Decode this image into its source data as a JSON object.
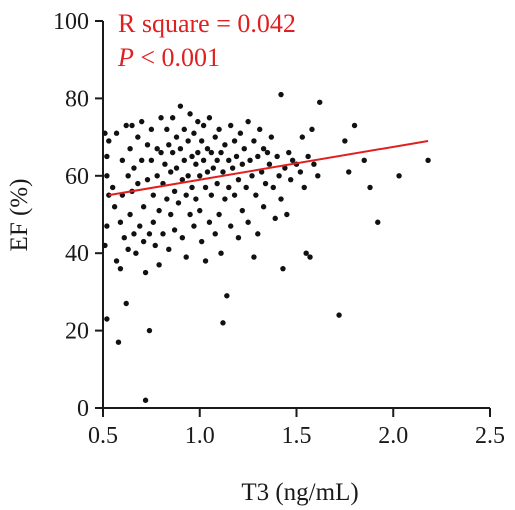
{
  "chart_data": {
    "type": "scatter",
    "xlabel": "T3 (ng/mL)",
    "ylabel": "EF (%)",
    "xlim": [
      0.5,
      2.5
    ],
    "ylim": [
      0,
      100
    ],
    "x_ticks": [
      "0.5",
      "1.0",
      "1.5",
      "2.0",
      "2.5"
    ],
    "y_ticks": [
      "0",
      "20",
      "40",
      "60",
      "80",
      "100"
    ],
    "grid": false,
    "annotations": {
      "r_square": "R square = 0.042",
      "p_label": "P",
      "p_rest": " < 0.001"
    },
    "colors": {
      "points": "#111111",
      "fit_line": "#e02020",
      "annotation": "#e02020",
      "axis": "#1a1a1a"
    },
    "fit_line": {
      "x": [
        0.53,
        2.18
      ],
      "y": [
        55,
        69
      ]
    },
    "points": [
      [
        0.51,
        71
      ],
      [
        0.52,
        65
      ],
      [
        0.52,
        60
      ],
      [
        0.53,
        69
      ],
      [
        0.53,
        55
      ],
      [
        0.52,
        47
      ],
      [
        0.51,
        42
      ],
      [
        0.52,
        23
      ],
      [
        0.55,
        57
      ],
      [
        0.56,
        52
      ],
      [
        0.57,
        71
      ],
      [
        0.57,
        38
      ],
      [
        0.58,
        17
      ],
      [
        0.59,
        48
      ],
      [
        0.59,
        36
      ],
      [
        0.6,
        64
      ],
      [
        0.6,
        55
      ],
      [
        0.61,
        44
      ],
      [
        0.62,
        73
      ],
      [
        0.62,
        27
      ],
      [
        0.63,
        60
      ],
      [
        0.63,
        41
      ],
      [
        0.64,
        67
      ],
      [
        0.64,
        50
      ],
      [
        0.65,
        73
      ],
      [
        0.65,
        56
      ],
      [
        0.66,
        62
      ],
      [
        0.66,
        45
      ],
      [
        0.67,
        40
      ],
      [
        0.68,
        70
      ],
      [
        0.68,
        58
      ],
      [
        0.69,
        47
      ],
      [
        0.7,
        74
      ],
      [
        0.7,
        64
      ],
      [
        0.71,
        52
      ],
      [
        0.71,
        43
      ],
      [
        0.72,
        35
      ],
      [
        0.72,
        2
      ],
      [
        0.73,
        68
      ],
      [
        0.73,
        59
      ],
      [
        0.74,
        45
      ],
      [
        0.74,
        20
      ],
      [
        0.75,
        72
      ],
      [
        0.75,
        64
      ],
      [
        0.76,
        55
      ],
      [
        0.76,
        48
      ],
      [
        0.77,
        42
      ],
      [
        0.78,
        67
      ],
      [
        0.78,
        60
      ],
      [
        0.79,
        51
      ],
      [
        0.79,
        37
      ],
      [
        0.8,
        75
      ],
      [
        0.8,
        66
      ],
      [
        0.81,
        58
      ],
      [
        0.81,
        45
      ],
      [
        0.82,
        63
      ],
      [
        0.83,
        72
      ],
      [
        0.83,
        54
      ],
      [
        0.84,
        68
      ],
      [
        0.84,
        41
      ],
      [
        0.85,
        61
      ],
      [
        0.85,
        50
      ],
      [
        0.86,
        75
      ],
      [
        0.86,
        66
      ],
      [
        0.87,
        56
      ],
      [
        0.87,
        46
      ],
      [
        0.88,
        70
      ],
      [
        0.88,
        62
      ],
      [
        0.89,
        53
      ],
      [
        0.9,
        78
      ],
      [
        0.9,
        67
      ],
      [
        0.91,
        59
      ],
      [
        0.91,
        44
      ],
      [
        0.92,
        72
      ],
      [
        0.92,
        64
      ],
      [
        0.93,
        55
      ],
      [
        0.93,
        39
      ],
      [
        0.94,
        69
      ],
      [
        0.94,
        60
      ],
      [
        0.95,
        50
      ],
      [
        0.95,
        76
      ],
      [
        0.96,
        65
      ],
      [
        0.96,
        57
      ],
      [
        0.97,
        71
      ],
      [
        0.97,
        47
      ],
      [
        0.98,
        63
      ],
      [
        0.98,
        54
      ],
      [
        0.99,
        74
      ],
      [
        0.99,
        66
      ],
      [
        1.0,
        60
      ],
      [
        1.0,
        51
      ],
      [
        1.01,
        69
      ],
      [
        1.01,
        43
      ],
      [
        1.02,
        73
      ],
      [
        1.02,
        64
      ],
      [
        1.03,
        57
      ],
      [
        1.03,
        38
      ],
      [
        1.04,
        67
      ],
      [
        1.04,
        61
      ],
      [
        1.05,
        75
      ],
      [
        1.05,
        48
      ],
      [
        1.06,
        66
      ],
      [
        1.06,
        55
      ],
      [
        1.07,
        62
      ],
      [
        1.08,
        70
      ],
      [
        1.08,
        45
      ],
      [
        1.09,
        64
      ],
      [
        1.09,
        58
      ],
      [
        1.1,
        72
      ],
      [
        1.1,
        50
      ],
      [
        1.11,
        66
      ],
      [
        1.11,
        40
      ],
      [
        1.12,
        61
      ],
      [
        1.12,
        22
      ],
      [
        1.13,
        68
      ],
      [
        1.13,
        54
      ],
      [
        1.14,
        29
      ],
      [
        1.15,
        64
      ],
      [
        1.15,
        57
      ],
      [
        1.16,
        73
      ],
      [
        1.16,
        47
      ],
      [
        1.17,
        62
      ],
      [
        1.18,
        69
      ],
      [
        1.18,
        55
      ],
      [
        1.19,
        65
      ],
      [
        1.2,
        59
      ],
      [
        1.2,
        44
      ],
      [
        1.21,
        71
      ],
      [
        1.22,
        63
      ],
      [
        1.22,
        51
      ],
      [
        1.23,
        67
      ],
      [
        1.24,
        57
      ],
      [
        1.25,
        74
      ],
      [
        1.25,
        48
      ],
      [
        1.26,
        64
      ],
      [
        1.27,
        60
      ],
      [
        1.28,
        69
      ],
      [
        1.28,
        39
      ],
      [
        1.29,
        55
      ],
      [
        1.3,
        65
      ],
      [
        1.3,
        45
      ],
      [
        1.31,
        72
      ],
      [
        1.32,
        61
      ],
      [
        1.33,
        67
      ],
      [
        1.33,
        52
      ],
      [
        1.34,
        58
      ],
      [
        1.35,
        66
      ],
      [
        1.36,
        63
      ],
      [
        1.37,
        70
      ],
      [
        1.38,
        57
      ],
      [
        1.39,
        49
      ],
      [
        1.4,
        65
      ],
      [
        1.41,
        60
      ],
      [
        1.42,
        81
      ],
      [
        1.42,
        54
      ],
      [
        1.43,
        36
      ],
      [
        1.44,
        62
      ],
      [
        1.45,
        50
      ],
      [
        1.46,
        66
      ],
      [
        1.47,
        59
      ],
      [
        1.48,
        64
      ],
      [
        1.5,
        63
      ],
      [
        1.52,
        61
      ],
      [
        1.53,
        70
      ],
      [
        1.54,
        57
      ],
      [
        1.55,
        40
      ],
      [
        1.56,
        65
      ],
      [
        1.57,
        39
      ],
      [
        1.58,
        72
      ],
      [
        1.59,
        63
      ],
      [
        1.61,
        60
      ],
      [
        1.62,
        79
      ],
      [
        1.72,
        24
      ],
      [
        1.75,
        69
      ],
      [
        1.77,
        61
      ],
      [
        1.8,
        73
      ],
      [
        1.85,
        64
      ],
      [
        1.88,
        57
      ],
      [
        1.92,
        48
      ],
      [
        2.03,
        60
      ],
      [
        2.18,
        64
      ]
    ]
  }
}
